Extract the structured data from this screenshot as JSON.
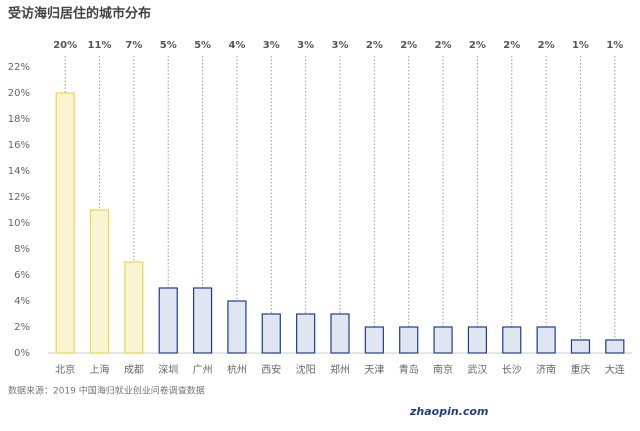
{
  "chart_data": {
    "type": "bar",
    "title": "受访海归居住的城市分布",
    "categories": [
      "北京",
      "上海",
      "成都",
      "深圳",
      "广州",
      "杭州",
      "西安",
      "沈阳",
      "郑州",
      "天津",
      "青岛",
      "南京",
      "武汉",
      "长沙",
      "济南",
      "重庆",
      "大连"
    ],
    "values": [
      20,
      11,
      7,
      5,
      5,
      4,
      3,
      3,
      3,
      2,
      2,
      2,
      2,
      2,
      2,
      1,
      1
    ],
    "value_labels": [
      "20%",
      "11%",
      "7%",
      "5%",
      "5%",
      "4%",
      "3%",
      "3%",
      "3%",
      "2%",
      "2%",
      "2%",
      "2%",
      "2%",
      "2%",
      "1%",
      "1%"
    ],
    "colors": [
      "#fbf4d2",
      "#fbf4d2",
      "#fbf4d2",
      "#dfe6f2",
      "#dfe6f2",
      "#dfe6f2",
      "#dfe6f2",
      "#dfe6f2",
      "#dfe6f2",
      "#dfe6f2",
      "#dfe6f2",
      "#dfe6f2",
      "#dfe6f2",
      "#dfe6f2",
      "#dfe6f2",
      "#dfe6f2",
      "#dfe6f2"
    ],
    "edge_colors": [
      "#e9d94c",
      "#e9d94c",
      "#e9d94c",
      "#1f3d8c",
      "#1f3d8c",
      "#1f3d8c",
      "#1f3d8c",
      "#1f3d8c",
      "#1f3d8c",
      "#1f3d8c",
      "#1f3d8c",
      "#1f3d8c",
      "#1f3d8c",
      "#1f3d8c",
      "#1f3d8c",
      "#1f3d8c",
      "#1f3d8c"
    ],
    "ylim": [
      0,
      22
    ],
    "yticks": [
      {
        "value": 0,
        "label": "0%"
      },
      {
        "value": 2,
        "label": "2%"
      },
      {
        "value": 4,
        "label": "4%"
      },
      {
        "value": 6,
        "label": "6%"
      },
      {
        "value": 8,
        "label": "8%"
      },
      {
        "value": 10,
        "label": "10%"
      },
      {
        "value": 12,
        "label": "12%"
      },
      {
        "value": 14,
        "label": "14%"
      },
      {
        "value": 16,
        "label": "16%"
      },
      {
        "value": 18,
        "label": "18%"
      },
      {
        "value": 20,
        "label": "20%"
      },
      {
        "value": 22,
        "label": "22%"
      }
    ],
    "grid": false,
    "source": "数据来源：2019 中国海归就业创业问卷调查数据",
    "logo": "zhaopin.com"
  }
}
